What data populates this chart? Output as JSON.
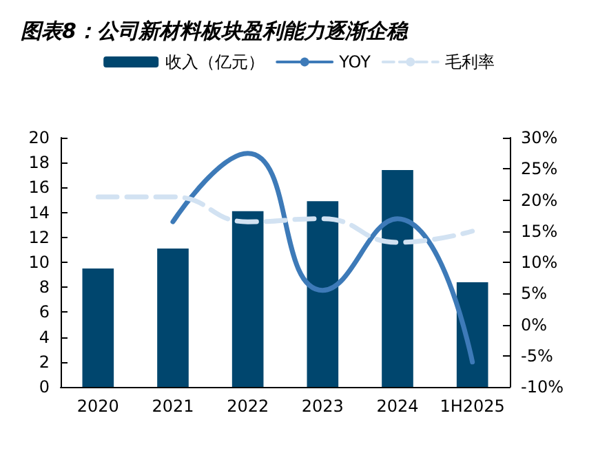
{
  "chart_data": {
    "type": "bar",
    "title": "图表8：公司新材料板块盈利能力逐渐企稳",
    "categories": [
      "2020",
      "2021",
      "2022",
      "2023",
      "2024",
      "1H2025"
    ],
    "series": [
      {
        "name": "收入（亿元）",
        "color": "#00466e",
        "values": [
          9.5,
          11.1,
          14.1,
          14.9,
          17.4,
          8.4
        ]
      },
      {
        "name": "YOY",
        "type": "line",
        "axis": "y2",
        "color": "#3d7ab8",
        "line_style": "solid",
        "values": [
          null,
          16.5,
          27.5,
          5.5,
          17,
          -6
        ]
      },
      {
        "name": "毛利率",
        "type": "line",
        "axis": "y2",
        "color": "#d2e2f2",
        "line_style": "dashed",
        "values": [
          20.5,
          20.5,
          16.5,
          17,
          13.2,
          15
        ]
      }
    ],
    "ylim": [
      0,
      20
    ],
    "yticks": [
      0,
      2,
      4,
      6,
      8,
      10,
      12,
      14,
      16,
      18,
      20
    ],
    "y2lim": [
      -10,
      30
    ],
    "y2ticks": [
      {
        "value": -10,
        "label": "-10%"
      },
      {
        "value": -5,
        "label": "-5%"
      },
      {
        "value": 0,
        "label": "0%"
      },
      {
        "value": 5,
        "label": "5%"
      },
      {
        "value": 10,
        "label": "10%"
      },
      {
        "value": 15,
        "label": "15%"
      },
      {
        "value": 20,
        "label": "20%"
      },
      {
        "value": 25,
        "label": "25%"
      },
      {
        "value": 30,
        "label": "30%"
      }
    ],
    "grid": false,
    "legend": "top",
    "marker": "none"
  }
}
